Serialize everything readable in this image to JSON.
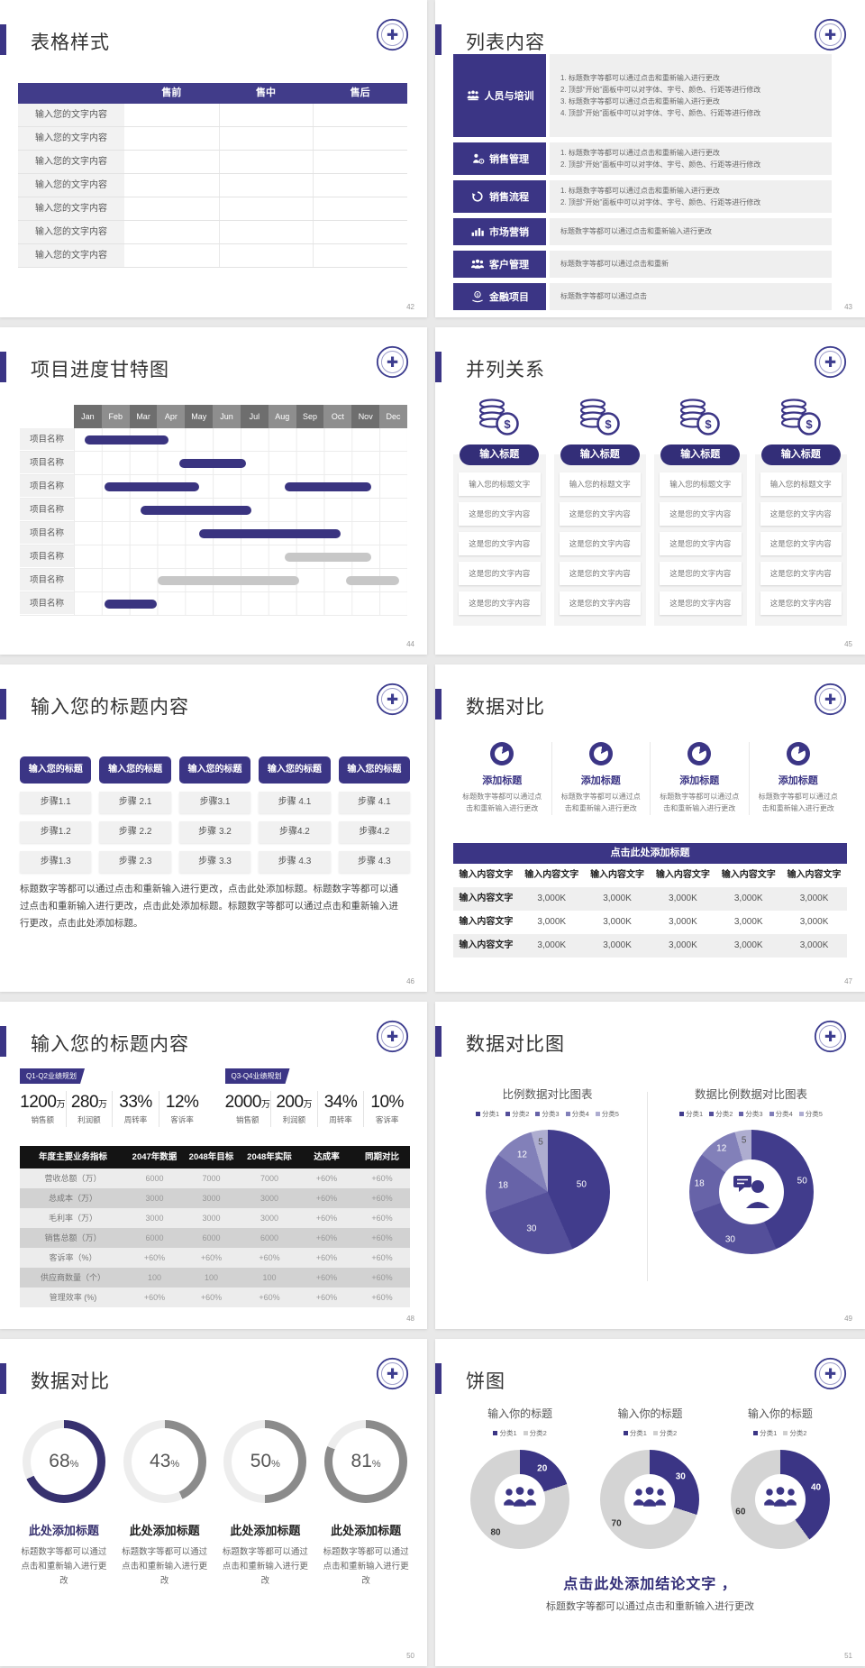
{
  "colors": {
    "primary": "#3b3585",
    "primary_dark": "#332e78",
    "bar_purple": "#3a3480",
    "bar_gray": "#c7c7c7",
    "slice_colors": [
      "#413c8c",
      "#544f9a",
      "#6763a8",
      "#8280b9",
      "#aeadd0"
    ],
    "gauge_accent": "#37316f",
    "gauge_gray": "#8b8b8b",
    "donut_gray": "#d4d4d4",
    "table_black": "#141414"
  },
  "slide42": {
    "title": "表格样式",
    "page_num": "42",
    "table": {
      "columns": [
        "",
        "售前",
        "售中",
        "售后"
      ],
      "rows": [
        [
          "输入您的文字内容",
          "",
          "",
          ""
        ],
        [
          "输入您的文字内容",
          "",
          "",
          ""
        ],
        [
          "输入您的文字内容",
          "",
          "",
          ""
        ],
        [
          "输入您的文字内容",
          "",
          "",
          ""
        ],
        [
          "输入您的文字内容",
          "",
          "",
          ""
        ],
        [
          "输入您的文字内容",
          "",
          "",
          ""
        ],
        [
          "输入您的文字内容",
          "",
          "",
          ""
        ]
      ]
    }
  },
  "slide43": {
    "title": "列表内容",
    "page_num": "43",
    "items": [
      {
        "icon": "training-people-icon",
        "label": "人员与培训",
        "lines": [
          "1.  标题数字等都可以通过点击和重新输入进行更改",
          "2.  顶部“开始”面板中可以对字体、字号、颜色、行距等进行修改",
          "3.  标题数字等都可以通过点击和重新输入进行更改",
          "4.  顶部“开始”面板中可以对字体、字号、颜色、行距等进行修改"
        ]
      },
      {
        "icon": "sales-manager-icon",
        "label": "销售管理",
        "lines": [
          "1.  标题数字等都可以通过点击和重新输入进行更改",
          "2.  顶部“开始”面板中可以对字体、字号、颜色、行距等进行修改"
        ]
      },
      {
        "icon": "sales-process-icon",
        "label": "销售流程",
        "lines": [
          "1.  标题数字等都可以通过点击和重新输入进行更改",
          "2.  顶部“开始”面板中可以对字体、字号、颜色、行距等进行修改"
        ]
      },
      {
        "icon": "marketing-chart-icon",
        "label": "市场营销",
        "lines": [
          "标题数字等都可以通过点击和重新输入进行更改"
        ]
      },
      {
        "icon": "customers-icon",
        "label": "客户管理",
        "lines": [
          "标题数字等都可以通过点击和重新"
        ]
      },
      {
        "icon": "finance-icon",
        "label": "金融项目",
        "lines": [
          "标题数字等都可以通过点击"
        ]
      }
    ]
  },
  "slide44": {
    "title": "项目进度甘特图",
    "page_num": "44",
    "gantt": {
      "months": [
        "Jan",
        "Feb",
        "Mar",
        "Apr",
        "May",
        "Jun",
        "Jul",
        "Aug",
        "Sep",
        "Oct",
        "Nov",
        "Dec"
      ],
      "row_label": "项目名称",
      "rows": [
        {
          "bars": [
            {
              "start": 0.4,
              "end": 3.4,
              "color": "purple"
            }
          ]
        },
        {
          "bars": [
            {
              "start": 3.8,
              "end": 6.2,
              "color": "purple"
            }
          ]
        },
        {
          "bars": [
            {
              "start": 1.1,
              "end": 4.5,
              "color": "purple"
            },
            {
              "start": 7.6,
              "end": 10.7,
              "color": "purple"
            }
          ]
        },
        {
          "bars": [
            {
              "start": 2.4,
              "end": 6.4,
              "color": "purple"
            }
          ]
        },
        {
          "bars": [
            {
              "start": 4.5,
              "end": 9.6,
              "color": "purple"
            }
          ]
        },
        {
          "bars": [
            {
              "start": 7.6,
              "end": 10.7,
              "color": "gray"
            }
          ]
        },
        {
          "bars": [
            {
              "start": 3.0,
              "end": 8.1,
              "color": "gray"
            },
            {
              "start": 9.8,
              "end": 11.7,
              "color": "gray"
            }
          ]
        },
        {
          "bars": [
            {
              "start": 1.1,
              "end": 3.0,
              "color": "purple"
            }
          ]
        }
      ]
    }
  },
  "slide45": {
    "title": "并列关系",
    "page_num": "45",
    "column_title": "输入标题",
    "row1": "输入您的标题文字",
    "row_rest": "这是您的文字内容",
    "columns": 4,
    "rows_per_column": 5
  },
  "slide46": {
    "title": "输入您的标题内容",
    "page_num": "46",
    "header_label": "输入您的标题",
    "columns": [
      [
        "步骤1.1",
        "步骤1.2",
        "步骤1.3"
      ],
      [
        "步骤 2.1",
        "步骤 2.2",
        "步骤 2.3"
      ],
      [
        "步骤3.1",
        "步骤 3.2",
        "步骤 3.3"
      ],
      [
        "步骤 4.1",
        "步骤4.2",
        "步骤 4.3"
      ],
      [
        "步骤 4.1",
        "步骤4.2",
        "步骤 4.3"
      ]
    ],
    "paragraph": "标题数字等都可以通过点击和重新输入进行更改，点击此处添加标题。标题数字等都可以通过点击和重新输入进行更改，点击此处添加标题。标题数字等都可以通过点击和重新输入进行更改，点击此处添加标题。"
  },
  "slide47": {
    "title": "数据对比",
    "page_num": "47",
    "feature_count": 4,
    "feature_title": "添加标题",
    "feature_caption": "标题数字等都可以通过点击和重新输入进行更改",
    "table_header": "点击此处添加标题",
    "col_header": "输入内容文字",
    "col_count": 6,
    "row_label": "输入内容文字",
    "cell_value": "3,000K",
    "data_row_count": 3
  },
  "slide48": {
    "title": "输入您的标题内容",
    "page_num": "48",
    "groups": [
      {
        "tag": "Q1-Q2业绩规划",
        "stats": [
          {
            "value": "1200",
            "unit": "万",
            "label": "销售额"
          },
          {
            "value": "280",
            "unit": "万",
            "label": "利润额"
          },
          {
            "value": "33%",
            "unit": "",
            "label": "周转率"
          },
          {
            "value": "12%",
            "unit": "",
            "label": "客诉率"
          }
        ]
      },
      {
        "tag": "Q3-Q4业绩规划",
        "stats": [
          {
            "value": "2000",
            "unit": "万",
            "label": "销售额"
          },
          {
            "value": "200",
            "unit": "万",
            "label": "利润额"
          },
          {
            "value": "34%",
            "unit": "",
            "label": "周转率"
          },
          {
            "value": "10%",
            "unit": "",
            "label": "客诉率"
          }
        ]
      }
    ],
    "table": {
      "headers": [
        "年度主要业务指标",
        "2047年数据",
        "2048年目标",
        "2048年实际",
        "达成率",
        "同期对比"
      ],
      "rows": [
        [
          "营收总额（万）",
          "6000",
          "7000",
          "7000",
          "+60%",
          "+60%"
        ],
        [
          "总成本（万）",
          "3000",
          "3000",
          "3000",
          "+60%",
          "+60%"
        ],
        [
          "毛利率（万）",
          "3000",
          "3000",
          "3000",
          "+60%",
          "+60%"
        ],
        [
          "销售总额（万）",
          "6000",
          "6000",
          "6000",
          "+60%",
          "+60%"
        ],
        [
          "客诉率（%）",
          "+60%",
          "+60%",
          "+60%",
          "+60%",
          "+60%"
        ],
        [
          "供应商数量（个）",
          "100",
          "100",
          "100",
          "+60%",
          "+60%"
        ],
        [
          "管理效率 (%)",
          "+60%",
          "+60%",
          "+60%",
          "+60%",
          "+60%"
        ]
      ]
    }
  },
  "slide49": {
    "title": "数据对比图",
    "page_num": "49",
    "charts": [
      {
        "type": "pie",
        "title": "比例数据对比图表",
        "legend": [
          "分类1",
          "分类2",
          "分类3",
          "分类4",
          "分类5"
        ],
        "values": [
          50,
          30,
          18,
          12,
          5
        ]
      },
      {
        "type": "donut",
        "title": "数据比例数据对比图表",
        "legend": [
          "分类1",
          "分类2",
          "分类3",
          "分类4",
          "分类5"
        ],
        "values": [
          50,
          30,
          18,
          12,
          5
        ]
      }
    ]
  },
  "slide50": {
    "title": "数据对比",
    "page_num": "50",
    "gauge_caption": "标题数字等都可以通过点击和重新输入进行更改",
    "gauges": [
      {
        "value": 68,
        "label": "此处添加标题",
        "accent": true
      },
      {
        "value": 43,
        "label": "此处添加标题",
        "accent": false
      },
      {
        "value": 50,
        "label": "此处添加标题",
        "accent": false
      },
      {
        "value": 81,
        "label": "此处添加标题",
        "accent": false
      }
    ]
  },
  "slide51": {
    "title": "饼图",
    "page_num": "51",
    "donuts": [
      {
        "title": "输入你的标题",
        "legend": [
          "分类1",
          "分类2"
        ],
        "values": [
          20,
          80
        ]
      },
      {
        "title": "输入你的标题",
        "legend": [
          "分类1",
          "分类2"
        ],
        "values": [
          30,
          70
        ]
      },
      {
        "title": "输入你的标题",
        "legend": [
          "分类1",
          "分类2"
        ],
        "values": [
          40,
          60
        ]
      }
    ],
    "conclusion": "点击此处添加结论文字 ，",
    "conclusion_caption": "标题数字等都可以通过点击和重新输入进行更改"
  },
  "chart_data": [
    {
      "type": "gantt",
      "title": "项目进度甘特图",
      "x_labels": [
        "Jan",
        "Feb",
        "Mar",
        "Apr",
        "May",
        "Jun",
        "Jul",
        "Aug",
        "Sep",
        "Oct",
        "Nov",
        "Dec"
      ],
      "rows": 8,
      "row_label": "项目名称"
    },
    {
      "type": "pie",
      "title": "比例数据对比图表",
      "labels": [
        "分类1",
        "分类2",
        "分类3",
        "分类4",
        "分类5"
      ],
      "values": [
        50,
        30,
        18,
        12,
        5
      ],
      "legend_position": "top"
    },
    {
      "type": "donut",
      "title": "数据比例数据对比图表",
      "labels": [
        "分类1",
        "分类2",
        "分类3",
        "分类4",
        "分类5"
      ],
      "values": [
        50,
        30,
        18,
        12,
        5
      ],
      "legend_position": "top"
    },
    {
      "type": "gauge",
      "title": "数据对比",
      "values": [
        68,
        43,
        50,
        81
      ],
      "unit": "%"
    },
    {
      "type": "donut",
      "title": "输入你的标题",
      "labels": [
        "分类1",
        "分类2"
      ],
      "values": [
        20,
        80
      ]
    },
    {
      "type": "donut",
      "title": "输入你的标题",
      "labels": [
        "分类1",
        "分类2"
      ],
      "values": [
        30,
        70
      ]
    },
    {
      "type": "donut",
      "title": "输入你的标题",
      "labels": [
        "分类1",
        "分类2"
      ],
      "values": [
        40,
        60
      ]
    }
  ]
}
